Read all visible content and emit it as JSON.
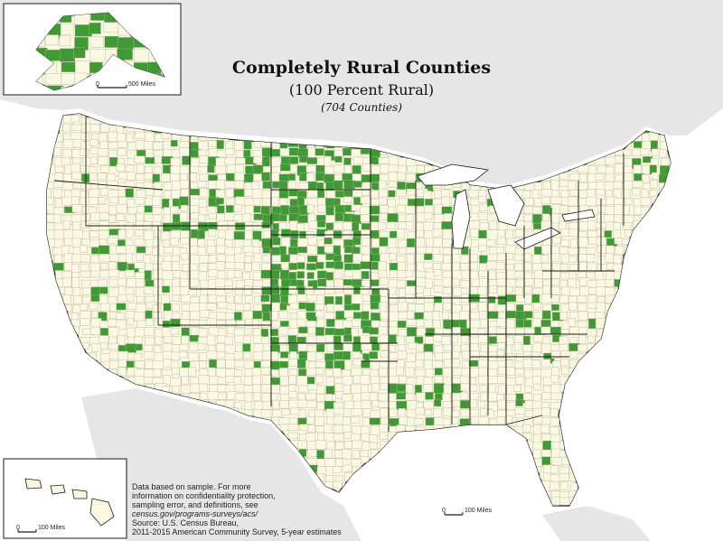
{
  "title": "Completely Rural Counties",
  "subtitle": "(100 Percent Rural)",
  "count_label": "(704 Counties)",
  "note": {
    "line1": "Data based on sample. For more",
    "line2": "information on confidentiality protection,",
    "line3": "sampling error, and definitions, see",
    "line4": "census.gov/programs-surveys/acs/",
    "source1": "Source: U.S. Census Bureau,",
    "source2": "2011-2015 American Community Survey, 5-year estimates"
  },
  "scales": {
    "alaska": {
      "zero": "0",
      "label": "500 Miles"
    },
    "hawaii": {
      "zero": "0",
      "label": "100 Miles"
    },
    "main": {
      "zero": "0",
      "label": "100 Miles"
    }
  },
  "colors": {
    "rural": "#3f9a33",
    "land": "#fbf8e2",
    "water": "#ffffff",
    "neighbor": "#e6e6e6",
    "county_border": "#b2b2a0",
    "state_border": "#1a1a1a"
  },
  "legend_meaning": "Green counties are 100 percent rural"
}
